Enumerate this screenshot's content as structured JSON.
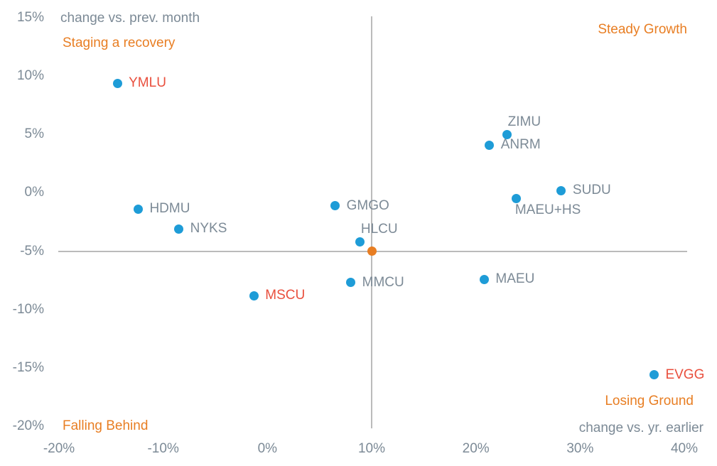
{
  "chart_data": {
    "type": "scatter",
    "x_axis": {
      "label": "change vs. yr. earlier",
      "min": -20,
      "max": 40,
      "tick_step": 10,
      "ticks": [
        "-20%",
        "-10%",
        "0%",
        "10%",
        "20%",
        "30%",
        "40%"
      ]
    },
    "y_axis": {
      "label": "change vs. prev. month",
      "min": -20,
      "max": 15,
      "tick_step": 5,
      "ticks": [
        "15%",
        "10%",
        "5%",
        "0%",
        "-5%",
        "-10%",
        "-15%",
        "-20%"
      ]
    },
    "crosshair": {
      "x": 10,
      "y": -5
    },
    "quadrant_labels": [
      {
        "text": "Staging a recovery",
        "position": "top-left"
      },
      {
        "text": "Steady Growth",
        "position": "top-right"
      },
      {
        "text": "Falling Behind",
        "position": "bottom-left"
      },
      {
        "text": "Losing Ground",
        "position": "bottom-right"
      }
    ],
    "points": [
      {
        "label": "YMLU",
        "x": -14.4,
        "y": 9.4,
        "label_color": "red",
        "label_pos": "right"
      },
      {
        "label": "HDMU",
        "x": -12.4,
        "y": -1.4,
        "label_color": "gray",
        "label_pos": "right"
      },
      {
        "label": "NYKS",
        "x": -8.5,
        "y": -3.1,
        "label_color": "gray",
        "label_pos": "right"
      },
      {
        "label": "MSCU",
        "x": -1.3,
        "y": -8.8,
        "label_color": "red",
        "label_pos": "right"
      },
      {
        "label": "GMGO",
        "x": 6.5,
        "y": -1.1,
        "label_color": "gray",
        "label_pos": "right"
      },
      {
        "label": "HLCU",
        "x": 8.9,
        "y": -4.2,
        "label_color": "gray",
        "label_pos": "above"
      },
      {
        "label": "",
        "x": 10.0,
        "y": -5.0,
        "label_color": "gray",
        "label_pos": "right",
        "highlight": true
      },
      {
        "label": "MMCU",
        "x": 8.0,
        "y": -7.7,
        "label_color": "gray",
        "label_pos": "right"
      },
      {
        "label": "MAEU",
        "x": 20.8,
        "y": -7.4,
        "label_color": "gray",
        "label_pos": "right"
      },
      {
        "label": "ANRM",
        "x": 21.3,
        "y": 4.1,
        "label_color": "gray",
        "label_pos": "right"
      },
      {
        "label": "ZIMU",
        "x": 23.0,
        "y": 5.0,
        "label_color": "gray",
        "label_pos": "above"
      },
      {
        "label": "MAEU+HS",
        "x": 23.9,
        "y": -0.5,
        "label_color": "gray",
        "label_pos": "below"
      },
      {
        "label": "SUDU",
        "x": 28.2,
        "y": 0.2,
        "label_color": "gray",
        "label_pos": "right"
      },
      {
        "label": "EVGG",
        "x": 37.1,
        "y": -15.6,
        "label_color": "red",
        "label_pos": "right"
      }
    ],
    "colors": {
      "point": "#1E9CD7",
      "highlight_point": "#E87E23",
      "label_red": "#E94F3D",
      "label_gray": "#7C8A96",
      "quadrant": "#E87E23",
      "axis_text": "#7C8A96",
      "gridline": "#BBBBBB"
    }
  }
}
